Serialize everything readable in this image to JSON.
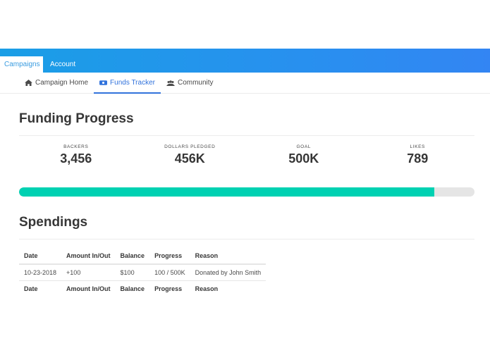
{
  "topnav": {
    "tabs": [
      {
        "label": "Campaigns",
        "active": true
      },
      {
        "label": "Account",
        "active": false
      }
    ],
    "gradient": [
      "#1a9ee6",
      "#3385f3"
    ]
  },
  "subnav": {
    "items": [
      {
        "label": "Campaign Home",
        "icon": "home-icon",
        "active": false
      },
      {
        "label": "Funds Tracker",
        "icon": "money-bill-icon",
        "active": true
      },
      {
        "label": "Community",
        "icon": "users-icon",
        "active": false
      }
    ],
    "active_color": "#3273dc"
  },
  "funding": {
    "title": "Funding Progress",
    "stats": [
      {
        "label": "Backers",
        "value": "3,456"
      },
      {
        "label": "Dollars Pledged",
        "value": "456K"
      },
      {
        "label": "Goal",
        "value": "500K"
      },
      {
        "label": "Likes",
        "value": "789"
      }
    ],
    "progress_percent": 91.2,
    "progress_color": "#00d1b2"
  },
  "spendings": {
    "title": "Spendings",
    "columns": [
      "Date",
      "Amount In/Out",
      "Balance",
      "Progress",
      "Reason"
    ],
    "rows": [
      [
        "10-23-2018",
        "+100",
        "$100",
        "100 / 500K",
        "Donated by John Smith"
      ]
    ],
    "footer": [
      "Date",
      "Amount In/Out",
      "Balance",
      "Progress",
      "Reason"
    ]
  }
}
